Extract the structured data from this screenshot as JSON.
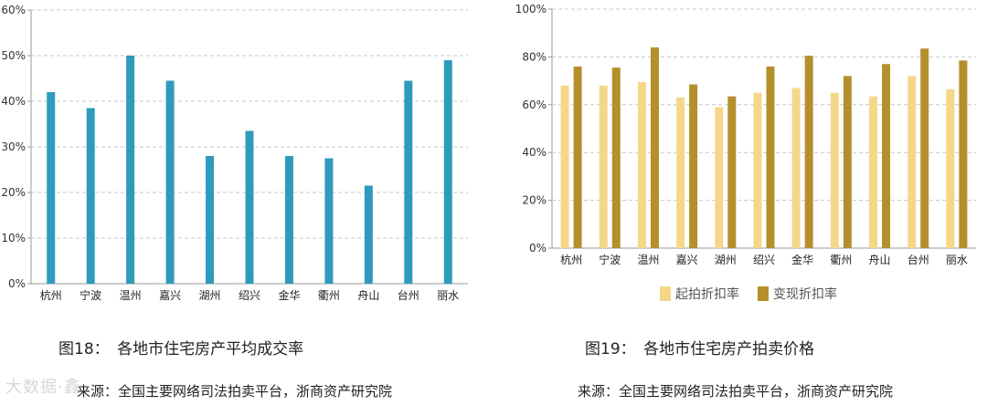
{
  "chart_data": [
    {
      "type": "bar",
      "title": "",
      "xlabel": "",
      "ylabel": "",
      "ylim": [
        0,
        60
      ],
      "yticks": [
        "0%",
        "10%",
        "20%",
        "30%",
        "40%",
        "50%",
        "60%"
      ],
      "grid": true,
      "categories": [
        "杭州",
        "宁波",
        "温州",
        "嘉兴",
        "湖州",
        "绍兴",
        "金华",
        "衢州",
        "舟山",
        "台州",
        "丽水"
      ],
      "series": [
        {
          "name": "",
          "color": "#2e9bbd",
          "values": [
            42,
            38.5,
            50,
            44.5,
            28,
            33.5,
            28,
            27.5,
            21.5,
            44.5,
            49
          ]
        }
      ]
    },
    {
      "type": "bar",
      "title": "",
      "xlabel": "",
      "ylabel": "",
      "ylim": [
        0,
        100
      ],
      "yticks": [
        "0%",
        "20%",
        "40%",
        "60%",
        "80%",
        "100%"
      ],
      "grid": true,
      "legend": "bottom",
      "categories": [
        "杭州",
        "宁波",
        "温州",
        "嘉兴",
        "湖州",
        "绍兴",
        "金华",
        "衢州",
        "舟山",
        "台州",
        "丽水"
      ],
      "series": [
        {
          "name": "起拍折扣率",
          "color": "#f5d78a",
          "values": [
            68,
            68,
            69.5,
            63,
            59,
            65,
            67,
            65,
            63.5,
            72,
            66.5
          ]
        },
        {
          "name": "变现折扣率",
          "color": "#b58f2c",
          "values": [
            76,
            75.5,
            84,
            68.5,
            63.5,
            76,
            80.5,
            72,
            77,
            83.5,
            78.5
          ]
        }
      ]
    }
  ],
  "captions": {
    "left_title": "图18：　各地市住宅房产平均成交率",
    "right_title": "图19：　各地市住宅房产拍卖价格",
    "left_source": "来源：全国主要网络司法拍卖平台，浙商资产研究院",
    "right_source": "来源：全国主要网络司法拍卖平台，浙商资产研究院"
  },
  "watermark": "大数据·鑫"
}
